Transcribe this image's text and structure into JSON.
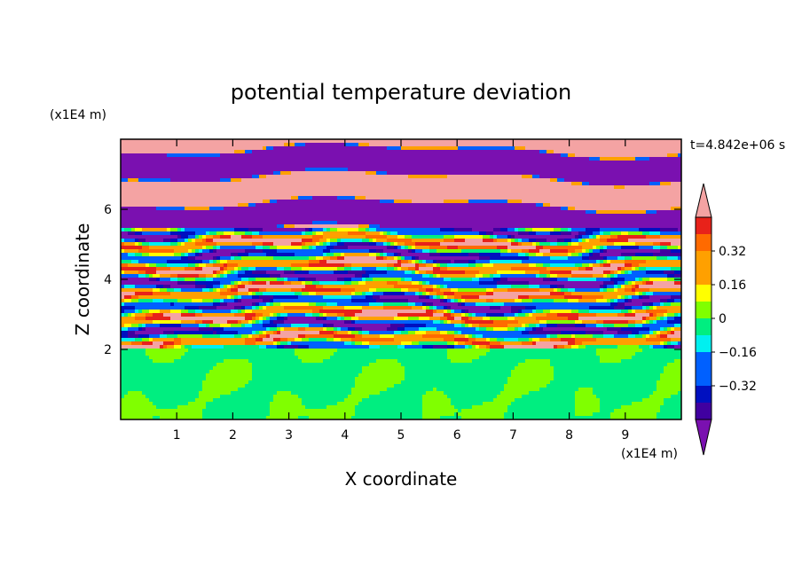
{
  "chart_data": {
    "type": "heatmap",
    "title": "potential temperature deviation",
    "xlabel": "X coordinate",
    "ylabel": "Z coordinate",
    "x_unit": "(x1E4 m)",
    "y_unit": "(x1E4 m)",
    "time_label": "t=4.842e+06 s",
    "xlim": [
      0,
      10
    ],
    "ylim": [
      0,
      8
    ],
    "x_ticks": [
      1,
      2,
      3,
      4,
      5,
      6,
      7,
      8,
      9
    ],
    "y_ticks": [
      2,
      4,
      6
    ],
    "colorbar": {
      "levels": [
        -0.48,
        -0.4,
        -0.32,
        -0.24,
        -0.16,
        -0.08,
        0,
        0.08,
        0.16,
        0.24,
        0.32,
        0.4,
        0.48
      ],
      "tick_labels": [
        "0.32",
        "0.16",
        "0",
        "−0.16",
        "−0.32"
      ],
      "tick_values": [
        0.32,
        0.16,
        0,
        -0.16,
        -0.32
      ],
      "colors_top_to_bottom": [
        "#f4a3a3",
        "#e8221a",
        "#ff6a00",
        "#ffa000",
        "#ffff00",
        "#80ff00",
        "#00ee80",
        "#00f0f0",
        "#0060ff",
        "#0010c0",
        "#4000a0",
        "#7a10b0"
      ],
      "extend": "both"
    },
    "field_regions": [
      {
        "z_range": [
          0,
          2.0
        ],
        "description": "lower layer, mostly near-zero (light green / mint)",
        "dominant_values": [
          0.04,
          -0.04
        ]
      },
      {
        "z_range": [
          2.0,
          5.5
        ],
        "description": "turbulent mixed layer, all levels",
        "dominant_values": [
          -0.3,
          -0.1,
          0,
          0.1,
          0.3
        ]
      },
      {
        "z_range": [
          5.5,
          8.0
        ],
        "description": "upper layer, alternating bands of saturated extremes",
        "dominant_values": [
          0.5,
          -0.5
        ]
      }
    ]
  }
}
